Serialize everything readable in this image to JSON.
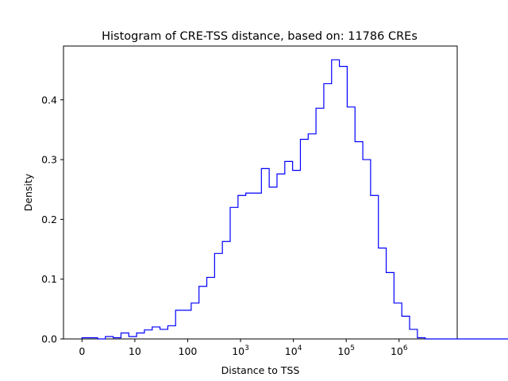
{
  "chart_data": {
    "type": "histogram",
    "title": "Histogram of CRE-TSS distance, based on: 11786 CREs",
    "xlabel": "Distance to TSS",
    "ylabel": "Density",
    "x_scale": "log(1+x)",
    "xlim": [
      -0.35,
      7.1
    ],
    "ylim": [
      0,
      0.49
    ],
    "grid": false,
    "legend": "none",
    "color": "#0000ff",
    "x_ticks": [
      {
        "value": 0,
        "base": "0",
        "exp": ""
      },
      {
        "value": 1,
        "base": "10",
        "exp": ""
      },
      {
        "value": 2,
        "base": "100",
        "exp": ""
      },
      {
        "value": 3,
        "base": "10",
        "exp": "3"
      },
      {
        "value": 4,
        "base": "10",
        "exp": "4"
      },
      {
        "value": 5,
        "base": "10",
        "exp": "5"
      },
      {
        "value": 6,
        "base": "10",
        "exp": "6"
      }
    ],
    "y_ticks": [
      {
        "value": 0.0,
        "label": "0.0"
      },
      {
        "value": 0.1,
        "label": "0.1"
      },
      {
        "value": 0.2,
        "label": "0.2"
      },
      {
        "value": 0.3,
        "label": "0.3"
      },
      {
        "value": 0.4,
        "label": "0.4"
      }
    ],
    "bin_start": 0,
    "bin_width": 0.1476,
    "densities": [
      0.002,
      0.002,
      0.0,
      0.004,
      0.002,
      0.01,
      0.004,
      0.01,
      0.015,
      0.02,
      0.016,
      0.022,
      0.048,
      0.048,
      0.06,
      0.088,
      0.103,
      0.143,
      0.163,
      0.22,
      0.24,
      0.244,
      0.244,
      0.285,
      0.254,
      0.276,
      0.297,
      0.282,
      0.334,
      0.343,
      0.386,
      0.427,
      0.467,
      0.456,
      0.388,
      0.33,
      0.3,
      0.24,
      0.152,
      0.111,
      0.06,
      0.038,
      0.016,
      0.002,
      0.0,
      0.0,
      0.0,
      0.0,
      0.0,
      0.0,
      0.0,
      0.0,
      0.0,
      0.0,
      0.0,
      0.0,
      0.0,
      0.0,
      0.0,
      0.0,
      0.0,
      0.0,
      0.002
    ]
  }
}
